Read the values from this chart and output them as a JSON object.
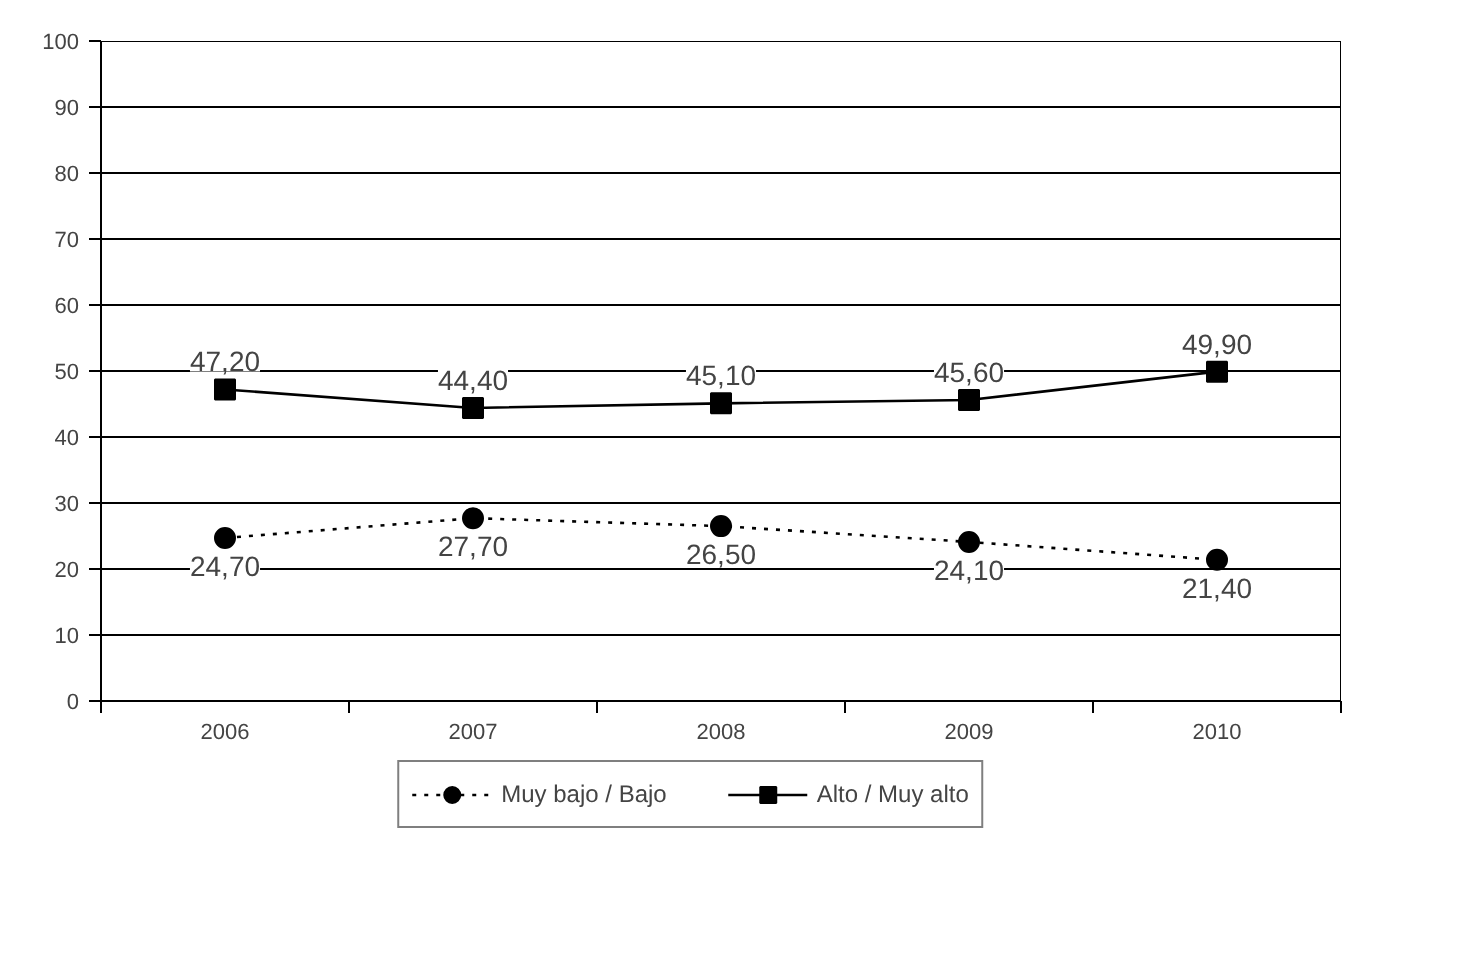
{
  "chart_data": {
    "type": "line",
    "categories": [
      "2006",
      "2007",
      "2008",
      "2009",
      "2010"
    ],
    "series": [
      {
        "name": "Muy bajo / Bajo",
        "color": "#000000",
        "marker": "circle",
        "line_style": "dotted",
        "values": [
          24.7,
          27.7,
          26.5,
          24.1,
          21.4
        ],
        "value_labels": [
          "24,70",
          "27,70",
          "26,50",
          "24,10",
          "21,40"
        ]
      },
      {
        "name": "Alto / Muy alto",
        "color": "#000000",
        "marker": "square",
        "line_style": "solid",
        "values": [
          47.2,
          44.4,
          45.1,
          45.6,
          49.9
        ],
        "value_labels": [
          "47,20",
          "44,40",
          "45,10",
          "45,60",
          "49,90"
        ]
      }
    ],
    "ylim": [
      0,
      100
    ],
    "yticks": [
      0,
      10,
      20,
      30,
      40,
      50,
      60,
      70,
      80,
      90,
      100
    ],
    "grid": "y",
    "legend": "bottom"
  }
}
